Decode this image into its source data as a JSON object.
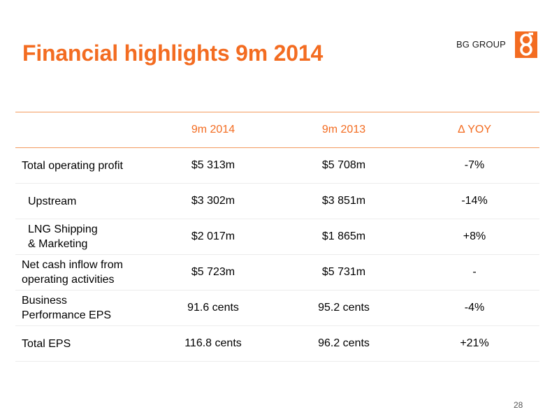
{
  "slide": {
    "title": "Financial highlights 9m 2014",
    "brand_name": "BG GROUP",
    "logo_letter": "g",
    "page_number": "28"
  },
  "colors": {
    "accent": "#f36c21",
    "rule": "#f39a5e"
  },
  "table": {
    "headers": [
      "",
      "9m 2014",
      "9m 2013",
      "Δ YOY"
    ],
    "rows": [
      {
        "label_lines": [
          "Total operating profit"
        ],
        "v2014": "$5 313m",
        "v2013": "$5 708m",
        "yoy": "-7%"
      },
      {
        "label_lines": [
          "Upstream"
        ],
        "v2014": "$3 302m",
        "v2013": "$3 851m",
        "yoy": "-14%"
      },
      {
        "label_lines": [
          "LNG Shipping",
          "& Marketing"
        ],
        "v2014": "$2 017m",
        "v2013": "$1 865m",
        "yoy": "+8%"
      },
      {
        "label_lines": [
          "Net cash inflow from",
          "operating activities"
        ],
        "v2014": "$5 723m",
        "v2013": "$5 731m",
        "yoy": "-"
      },
      {
        "label_lines": [
          "Business",
          "Performance EPS"
        ],
        "v2014": "91.6 cents",
        "v2013": "95.2 cents",
        "yoy": "-4%"
      },
      {
        "label_lines": [
          "Total EPS"
        ],
        "v2014": "116.8 cents",
        "v2013": "96.2 cents",
        "yoy": "+21%"
      }
    ]
  }
}
